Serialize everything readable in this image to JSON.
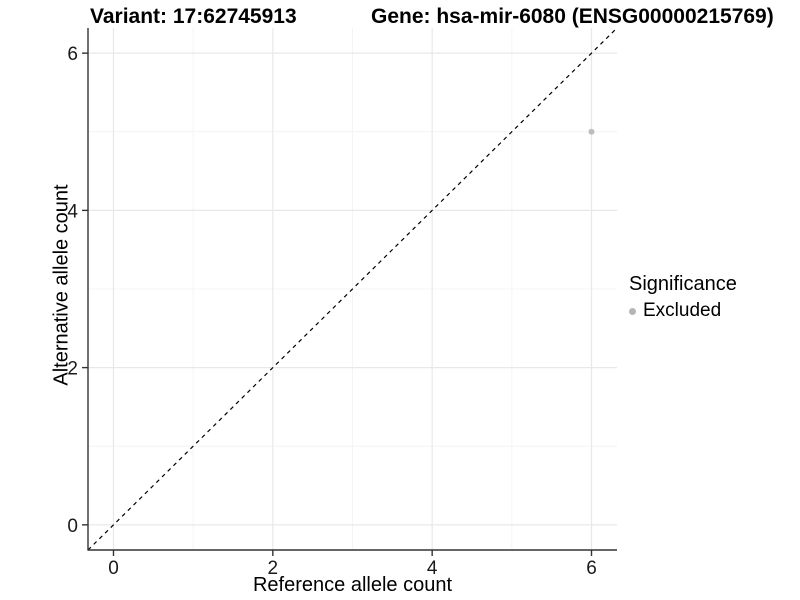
{
  "titles": {
    "left": "Variant: 17:62745913",
    "right": "Gene: hsa-mir-6080 (ENSG00000215769)"
  },
  "chart_data": {
    "type": "scatter",
    "xlabel": "Reference allele count",
    "ylabel": "Alternative allele count",
    "xlim": [
      -0.32,
      6.32
    ],
    "ylim": [
      -0.32,
      6.32
    ],
    "xticks": [
      0,
      2,
      4,
      6
    ],
    "yticks": [
      0,
      2,
      4,
      6
    ],
    "xticks_minor": [
      1,
      3,
      5
    ],
    "yticks_minor": [
      1,
      3,
      5
    ],
    "grid": "on",
    "points": [
      {
        "x": 6,
        "y": 5,
        "series": "Excluded"
      }
    ],
    "point_color": "#bdbdbd",
    "abline": {
      "slope": 1,
      "intercept": 0,
      "style": "dashed",
      "color": "#000000"
    },
    "legend": {
      "title": "Significance",
      "position": "right",
      "items": [
        {
          "label": "Excluded",
          "color": "#b5b5b5"
        }
      ]
    },
    "colors": {
      "grid_major": "#e8e8e8",
      "grid_minor": "#f4f4f4",
      "axis": "#333333",
      "tick_text": "#1a1a1a"
    }
  }
}
